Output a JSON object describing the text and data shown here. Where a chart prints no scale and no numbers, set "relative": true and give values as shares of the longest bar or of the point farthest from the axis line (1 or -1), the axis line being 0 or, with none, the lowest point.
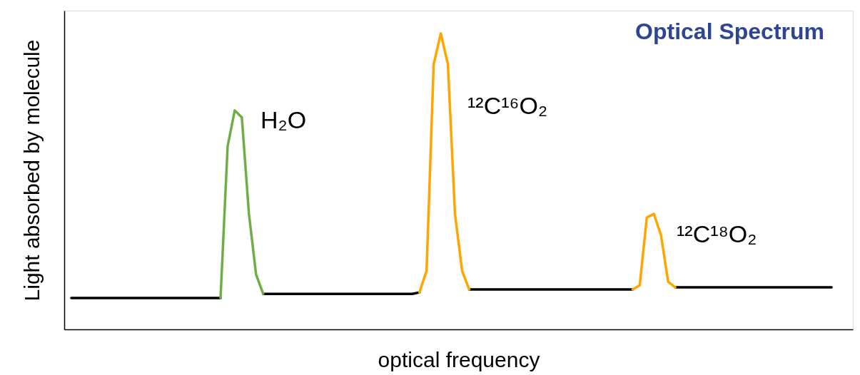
{
  "chart_data": {
    "type": "line",
    "relative": true,
    "title": "Optical Spectrum",
    "xlabel": "optical frequency",
    "ylabel": "Light absorbed by molecule",
    "categories": [
      null,
      null,
      null,
      null,
      null,
      null,
      null,
      null,
      null,
      null,
      null,
      null,
      null,
      null,
      null,
      null,
      null,
      null,
      null,
      null,
      null,
      null,
      null,
      null,
      null,
      null,
      null,
      null,
      null,
      null,
      null,
      null,
      null,
      null,
      null,
      null,
      null,
      null,
      null,
      null,
      null,
      null,
      null,
      null,
      null,
      null,
      null,
      null,
      null,
      null,
      null,
      null,
      null,
      null,
      null,
      null,
      null,
      null,
      null,
      null,
      null,
      null,
      null,
      null,
      null,
      null,
      null,
      null,
      null,
      null,
      null,
      null,
      null,
      null,
      null,
      null,
      null,
      null,
      null,
      null,
      null,
      null,
      null,
      null,
      null,
      null,
      null,
      null,
      null,
      null,
      null,
      null,
      null,
      null,
      null,
      null,
      null,
      null,
      null,
      null,
      null,
      null,
      null,
      null,
      null,
      null,
      null,
      null,
      null,
      null,
      null,
      null
    ],
    "series": [
      {
        "color": "#000000",
        "values": [
          null,
          0.106,
          0.106,
          0.106,
          0.106,
          0.106,
          0.106,
          0.106,
          0.106,
          0.106,
          0.106,
          0.106,
          0.106,
          0.106,
          0.106,
          0.106,
          0.106,
          0.106,
          0.106,
          0.106,
          0.106,
          0.106,
          0.106,
          null,
          null,
          null,
          null,
          null,
          0.12,
          0.12,
          0.12,
          0.12,
          0.12,
          0.12,
          0.12,
          0.12,
          0.12,
          0.12,
          0.12,
          0.12,
          0.12,
          0.12,
          0.12,
          0.12,
          0.12,
          0.12,
          0.12,
          0.12,
          0.12,
          0.12,
          0.125,
          null,
          null,
          null,
          null,
          null,
          null,
          0.135,
          0.135,
          0.135,
          0.135,
          0.135,
          0.135,
          0.135,
          0.135,
          0.135,
          0.135,
          0.135,
          0.135,
          0.135,
          0.135,
          0.135,
          0.135,
          0.135,
          0.135,
          0.135,
          0.135,
          0.135,
          0.135,
          0.135,
          0.135,
          null,
          null,
          null,
          null,
          null,
          0.142,
          0.142,
          0.142,
          0.142,
          0.142,
          0.142,
          0.142,
          0.142,
          0.142,
          0.142,
          0.142,
          0.142,
          0.142,
          0.142,
          0.142,
          0.142,
          0.142,
          0.142,
          0.142,
          0.142,
          0.142,
          0.142,
          0.142,
          null,
          null,
          null
        ]
      },
      {
        "color": "#70ad47",
        "values": [
          null,
          null,
          null,
          null,
          null,
          null,
          null,
          null,
          null,
          null,
          null,
          null,
          null,
          null,
          null,
          null,
          null,
          null,
          null,
          null,
          null,
          null,
          0.106,
          0.619,
          0.74,
          0.716,
          0.39,
          0.186,
          0.12,
          null,
          null,
          null,
          null,
          null,
          null,
          null,
          null,
          null,
          null,
          null,
          null,
          null,
          null,
          null,
          null,
          null,
          null,
          null,
          null,
          null,
          null,
          null,
          null,
          null,
          null,
          null,
          null,
          null,
          null,
          null,
          null,
          null,
          null,
          null,
          null,
          null,
          null,
          null,
          null,
          null,
          null,
          null,
          null,
          null,
          null,
          null,
          null,
          null,
          null,
          null,
          null,
          null,
          null,
          null,
          null,
          null,
          null,
          null,
          null,
          null,
          null,
          null,
          null,
          null,
          null,
          null,
          null,
          null,
          null,
          null,
          null,
          null,
          null,
          null,
          null,
          null,
          null,
          null,
          null,
          null,
          null,
          null
        ]
      },
      {
        "color": "#ffa500",
        "values": [
          null,
          null,
          null,
          null,
          null,
          null,
          null,
          null,
          null,
          null,
          null,
          null,
          null,
          null,
          null,
          null,
          null,
          null,
          null,
          null,
          null,
          null,
          null,
          null,
          null,
          null,
          null,
          null,
          null,
          null,
          null,
          null,
          null,
          null,
          null,
          null,
          null,
          null,
          null,
          null,
          null,
          null,
          null,
          null,
          null,
          null,
          null,
          null,
          null,
          null,
          0.125,
          0.198,
          0.896,
          1.0,
          0.896,
          0.39,
          0.198,
          0.135,
          null,
          null,
          null,
          null,
          null,
          null,
          null,
          null,
          null,
          null,
          null,
          null,
          null,
          null,
          null,
          null,
          null,
          null,
          null,
          null,
          null,
          null,
          0.135,
          0.149,
          0.378,
          0.39,
          0.318,
          0.161,
          0.142,
          null,
          null,
          null,
          null,
          null,
          null,
          null,
          null,
          null,
          null,
          null,
          null,
          null,
          null,
          null,
          null,
          null,
          null,
          null,
          null,
          null,
          null,
          null,
          null,
          null
        ]
      }
    ],
    "annotations": [
      "H₂O",
      "¹²C¹⁶O₂",
      "¹²C¹⁸O₂"
    ]
  }
}
